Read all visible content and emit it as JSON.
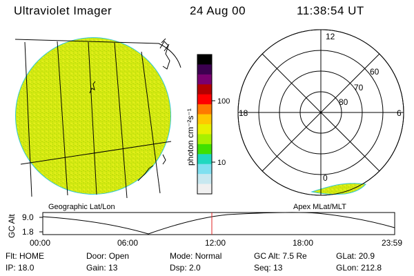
{
  "header": {
    "instrument": "Ultraviolet Imager",
    "date": "24 Aug 00",
    "time": "11:38:54 UT"
  },
  "colorbar": {
    "unit_label": "photon cm⁻²s⁻¹",
    "ticks": [
      "100",
      "10"
    ],
    "colors": [
      "#000000",
      "#3c0050",
      "#7a0070",
      "#b40000",
      "#ff0000",
      "#ff7a00",
      "#ffc800",
      "#e8f000",
      "#a8f000",
      "#40e000",
      "#20d8c0",
      "#80e0f0",
      "#c8e8f0",
      "#f0f0f0"
    ]
  },
  "polar": {
    "mlt_labels": {
      "top": "12",
      "left": "18",
      "right": "6",
      "bottom": "0"
    },
    "lat_labels": [
      "60",
      "70",
      "80"
    ]
  },
  "map_labels": {
    "left": "Geographic Lat/Lon",
    "right": "Apex MLat/MLT"
  },
  "timeline": {
    "axis_title": "GC Alt",
    "y_ticks": [
      "9.0",
      "1.8"
    ],
    "x_ticks": [
      "00:00",
      "06:00",
      "12:00",
      "18:00",
      "23:59"
    ],
    "marker_time": "11:38:54"
  },
  "status": {
    "row1": [
      {
        "label": "Flt:",
        "value": "HOME"
      },
      {
        "label": "Door:",
        "value": "Open"
      },
      {
        "label": "Mode:",
        "value": "Normal"
      },
      {
        "label": "GC Alt:",
        "value": "7.5 Re"
      },
      {
        "label": "GLat:",
        "value": "20.9"
      }
    ],
    "row2": [
      {
        "label": "IP:",
        "value": "18.0"
      },
      {
        "label": "Gain:",
        "value": "13"
      },
      {
        "label": "Dsp:",
        "value": "2.0"
      },
      {
        "label": "Seq:",
        "value": "13"
      },
      {
        "label": "GLon:",
        "value": "212.8"
      }
    ]
  }
}
